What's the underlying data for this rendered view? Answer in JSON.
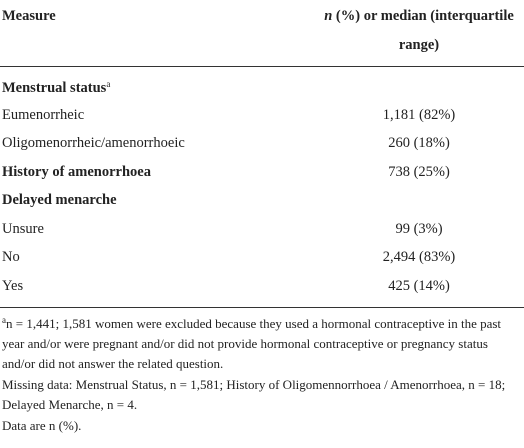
{
  "header": {
    "measure": "Measure",
    "value_italic": "n",
    "value": "(%) or median (interquartile range)"
  },
  "rows": [
    {
      "label": "Menstrual status",
      "sup": "a",
      "bold": true
    },
    {
      "label": "Eumenorrheic",
      "value": "1,181 (82%)"
    },
    {
      "label": "Oligomenorrheic/amenorrhoeic",
      "value": "260 (18%)"
    },
    {
      "label": "History of amenorrhoea",
      "value": "738 (25%)",
      "bold": true
    },
    {
      "label": "Delayed menarche",
      "bold": true
    },
    {
      "label": "Unsure",
      "value": "99 (3%)"
    },
    {
      "label": "No",
      "value": "2,494 (83%)"
    },
    {
      "label": "Yes",
      "value": "425 (14%)"
    }
  ],
  "footnotes": [
    {
      "sup": "a",
      "text": "n = 1,441; 1,581 women were excluded because they used a hormonal contraceptive in the past year and/or were pregnant and/or did not provide hormonal contraceptive or pregnancy status and/or did not answer the related question."
    },
    {
      "text": "Missing data: Menstrual Status, n = 1,581; History of Oligomennorrhoea / Amenorrhoea, n = 18; Delayed Menarche, n = 4."
    },
    {
      "text": "Data are n (%)."
    }
  ]
}
